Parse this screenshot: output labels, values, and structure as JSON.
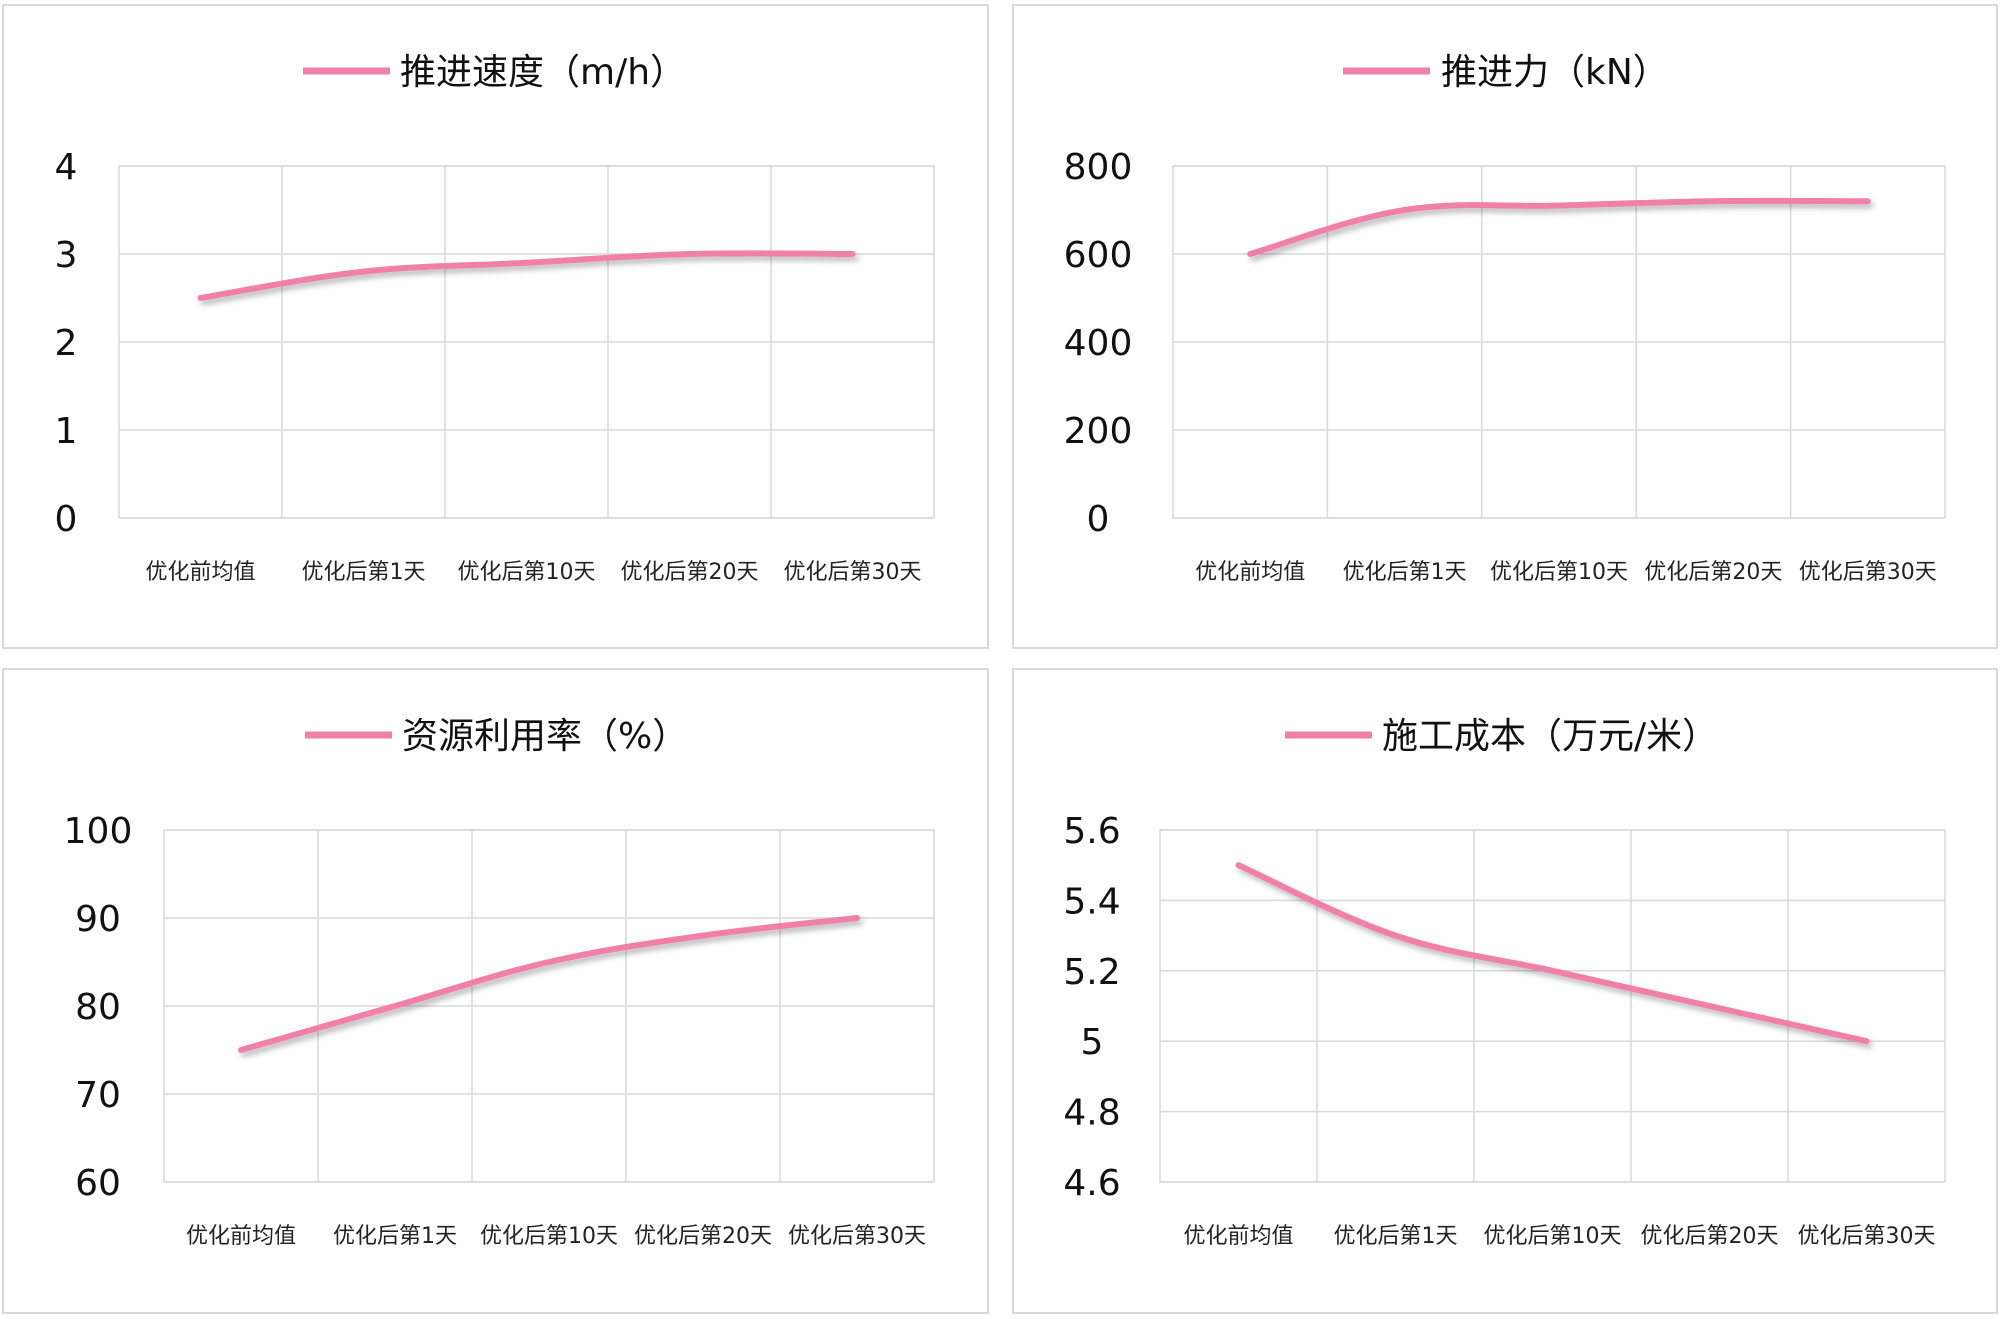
{
  "colors": {
    "series": "#f080a8",
    "grid": "#d9d9d9",
    "text": "#111111"
  },
  "chart_data": [
    {
      "type": "line",
      "title": "推进速度（m/h）",
      "categories": [
        "优化前均值",
        "优化后第1天",
        "优化后第10天",
        "优化后第20天",
        "优化后第30天"
      ],
      "series": [
        {
          "name": "推进速度（m/h）",
          "values": [
            2.5,
            2.8,
            2.9,
            3.0,
            3.0
          ]
        }
      ],
      "ylim": [
        0,
        4
      ],
      "yticks": [
        "0",
        "1",
        "2",
        "3",
        "4"
      ],
      "grid": true,
      "legend": "top"
    },
    {
      "type": "line",
      "title": "推进力（kN）",
      "categories": [
        "优化前均值",
        "优化后第1天",
        "优化后第10天",
        "优化后第20天",
        "优化后第30天"
      ],
      "series": [
        {
          "name": "推进力（kN）",
          "values": [
            600,
            700,
            710,
            720,
            720
          ]
        }
      ],
      "ylim": [
        0,
        800
      ],
      "yticks": [
        "0",
        "200",
        "400",
        "600",
        "800"
      ],
      "grid": true,
      "legend": "top"
    },
    {
      "type": "line",
      "title": "资源利用率（%）",
      "categories": [
        "优化前均值",
        "优化后第1天",
        "优化后第10天",
        "优化后第20天",
        "优化后第30天"
      ],
      "series": [
        {
          "name": "资源利用率（%）",
          "values": [
            75,
            80,
            85,
            88,
            90
          ]
        }
      ],
      "ylim": [
        60,
        100
      ],
      "yticks": [
        "60",
        "70",
        "80",
        "90",
        "100"
      ],
      "grid": true,
      "legend": "top"
    },
    {
      "type": "line",
      "title": "施工成本（万元/米）",
      "categories": [
        "优化前均值",
        "优化后第1天",
        "优化后第10天",
        "优化后第20天",
        "优化后第30天"
      ],
      "series": [
        {
          "name": "施工成本（万元/米）",
          "values": [
            5.5,
            5.3,
            5.2,
            5.1,
            5.0
          ]
        }
      ],
      "ylim": [
        4.6,
        5.6
      ],
      "yticks": [
        "4.6",
        "4.8",
        "5",
        "5.2",
        "5.4",
        "5.6"
      ],
      "grid": true,
      "legend": "top"
    }
  ]
}
